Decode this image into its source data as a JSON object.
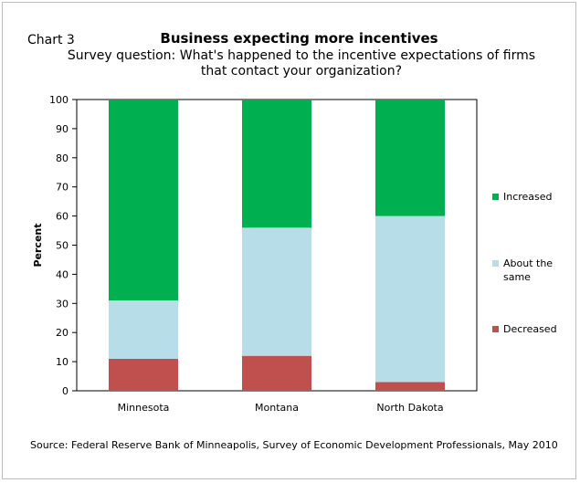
{
  "chart_label": "Chart 3",
  "source": "Source: Federal Reserve Bank of Minneapolis, Survey of Economic Development Professionals, May 2010",
  "chart_data": {
    "type": "bar",
    "stacked": true,
    "title": "Business  expecting more incentives",
    "subtitle": "Survey question: What's happened to the incentive expectations of firms that contact your organization?",
    "xlabel": "",
    "ylabel": "Percent",
    "ylim": [
      0,
      100
    ],
    "yticks": [
      0,
      10,
      20,
      30,
      40,
      50,
      60,
      70,
      80,
      90,
      100
    ],
    "categories": [
      "Minnesota",
      "Montana",
      "North Dakota"
    ],
    "series": [
      {
        "name": "Decreased",
        "values": [
          11,
          12,
          3
        ],
        "color": "#c0504d"
      },
      {
        "name": "About the same",
        "values": [
          20,
          44,
          57
        ],
        "color": "#b7dde8"
      },
      {
        "name": "Increased",
        "values": [
          69,
          44,
          40
        ],
        "color": "#00b050"
      }
    ],
    "legend": {
      "position": "right",
      "order": [
        "Increased",
        "About the same",
        "Decreased"
      ]
    }
  }
}
